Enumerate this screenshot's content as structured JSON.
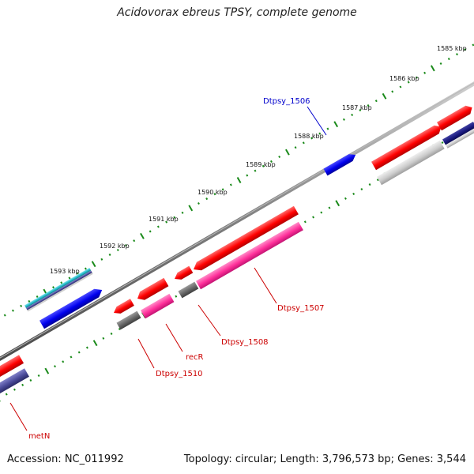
{
  "title": "Acidovorax ebreus TPSY, complete genome",
  "footer": {
    "accession": "Accession: NC_011992",
    "stats": "Topology: circular; Length: 3,796,573 bp; Genes: 3,544"
  },
  "scale_labels": [
    "1585 kbp",
    "1586 kbp",
    "1587 kbp",
    "1588 kbp",
    "1589 kbp",
    "1590 kbp",
    "1591 kbp",
    "1592 kbp",
    "1593 kbp"
  ],
  "gene_labels": {
    "dtpsy_1506": "Dtpsy_1506",
    "dtpsy_1507": "Dtpsy_1507",
    "dtpsy_1508": "Dtpsy_1508",
    "recr": "recR",
    "dtpsy_1510": "Dtpsy_1510",
    "metn": "metN"
  },
  "colors": {
    "forward_cds": "#ff0000",
    "reverse_cds": "#0000ee",
    "pink_feature": "#ff3fa0",
    "gray_feature": "#666666",
    "light_gray_feature": "#cccccc",
    "purple_feature": "#4a4a99",
    "cyan_feature": "#22b8c8",
    "navy_feature": "#1a1a80",
    "tick_color": "#1a8a1a",
    "backbone": "#7f7f7f",
    "label_blue": "#0000cc",
    "label_red": "#cc0000"
  }
}
